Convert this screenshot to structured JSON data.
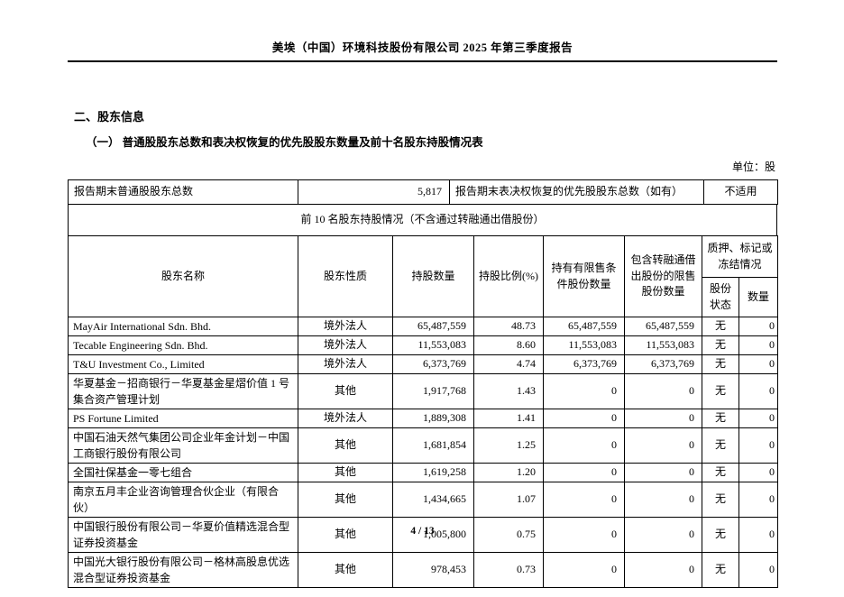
{
  "doc_header": {
    "title": "美埃（中国）环境科技股份有限公司 2025 年第三季度报告"
  },
  "sections": {
    "section_title": "二、股东信息",
    "subsection_title": "（一） 普通股股东总数和表决权恢复的优先股股东数量及前十名股东持股情况表",
    "unit_label": "单位：股"
  },
  "summary_row": {
    "common_label": "报告期末普通股股东总数",
    "common_value": "5,817",
    "preferred_label": "报告期末表决权恢复的优先股股东总数（如有）",
    "preferred_value": "不适用"
  },
  "top10_caption": "前 10 名股东持股情况（不含通过转融通出借股份）",
  "table": {
    "headers": {
      "name": "股东名称",
      "nature": "股东性质",
      "shares": "持股数量",
      "ratio": "持股比例(%)",
      "restricted": "持有有限售条件股份数量",
      "refinancing": "包含转融通借出股份的限售股份数量",
      "pledge": "质押、标记或冻结情况",
      "status": "股份状态",
      "quantity": "数量"
    },
    "rows": [
      {
        "name": "MayAir International Sdn. Bhd.",
        "nature": "境外法人",
        "shares": "65,487,559",
        "ratio": "48.73",
        "restricted": "65,487,559",
        "refinancing": "65,487,559",
        "status": "无",
        "quantity": "0"
      },
      {
        "name": "Tecable Engineering Sdn. Bhd.",
        "nature": "境外法人",
        "shares": "11,553,083",
        "ratio": "8.60",
        "restricted": "11,553,083",
        "refinancing": "11,553,083",
        "status": "无",
        "quantity": "0"
      },
      {
        "name": "T&U Investment Co., Limited",
        "nature": "境外法人",
        "shares": "6,373,769",
        "ratio": "4.74",
        "restricted": "6,373,769",
        "refinancing": "6,373,769",
        "status": "无",
        "quantity": "0"
      },
      {
        "name": "华夏基金－招商银行－华夏基金星熠价值 1 号集合资产管理计划",
        "nature": "其他",
        "shares": "1,917,768",
        "ratio": "1.43",
        "restricted": "0",
        "refinancing": "0",
        "status": "无",
        "quantity": "0"
      },
      {
        "name": "PS Fortune Limited",
        "nature": "境外法人",
        "shares": "1,889,308",
        "ratio": "1.41",
        "restricted": "0",
        "refinancing": "0",
        "status": "无",
        "quantity": "0"
      },
      {
        "name": "中国石油天然气集团公司企业年金计划－中国工商银行股份有限公司",
        "nature": "其他",
        "shares": "1,681,854",
        "ratio": "1.25",
        "restricted": "0",
        "refinancing": "0",
        "status": "无",
        "quantity": "0"
      },
      {
        "name": "全国社保基金一零七组合",
        "nature": "其他",
        "shares": "1,619,258",
        "ratio": "1.20",
        "restricted": "0",
        "refinancing": "0",
        "status": "无",
        "quantity": "0"
      },
      {
        "name": "南京五月丰企业咨询管理合伙企业（有限合伙）",
        "nature": "其他",
        "shares": "1,434,665",
        "ratio": "1.07",
        "restricted": "0",
        "refinancing": "0",
        "status": "无",
        "quantity": "0"
      },
      {
        "name": "中国银行股份有限公司－华夏价值精选混合型证券投资基金",
        "nature": "其他",
        "shares": "1,005,800",
        "ratio": "0.75",
        "restricted": "0",
        "refinancing": "0",
        "status": "无",
        "quantity": "0"
      },
      {
        "name": "中国光大银行股份有限公司－格林高股息优选混合型证券投资基金",
        "nature": "其他",
        "shares": "978,453",
        "ratio": "0.73",
        "restricted": "0",
        "refinancing": "0",
        "status": "无",
        "quantity": "0"
      }
    ]
  },
  "footer": {
    "page_number": "4 / 13"
  }
}
